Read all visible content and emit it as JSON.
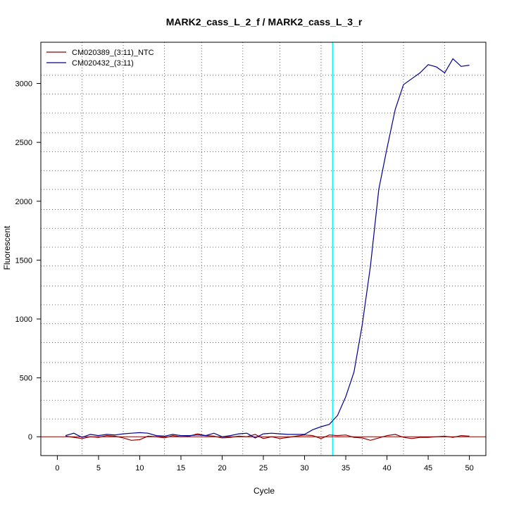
{
  "chart_data": {
    "type": "line",
    "title": "MARK2_cass_L_2_f / MARK2_cass_L_3_r",
    "xlabel": "Cycle",
    "ylabel": "Fluorescent",
    "xlim": [
      -2,
      52
    ],
    "ylim": [
      -160,
      3350
    ],
    "x_ticks": [
      0,
      5,
      10,
      15,
      20,
      25,
      30,
      35,
      40,
      45,
      50
    ],
    "y_ticks": [
      0,
      500,
      1000,
      1500,
      2000,
      2500,
      3000
    ],
    "x_grid": [
      3,
      8,
      13,
      17.5,
      22.5,
      27,
      32,
      37,
      42,
      47,
      52
    ],
    "y_grid": [
      150,
      310,
      470,
      630,
      800,
      960,
      1120,
      1280,
      1450,
      1610,
      1770,
      1930,
      2100,
      2260,
      2420,
      2580,
      2750,
      2910,
      3070
    ],
    "grid": true,
    "legend_position": "top-left",
    "baseline": 0,
    "threshold_cycle": 33.4,
    "colors": {
      "ntc": "#8b0000",
      "sample": "#00008b",
      "threshold": "#00ffff",
      "baseline": "#8b0000",
      "grid": "#666666"
    },
    "series": [
      {
        "name": "CM020389_(3:11)_NTC",
        "color": "#8b0000",
        "x": [
          1,
          2,
          3,
          4,
          5,
          6,
          7,
          8,
          9,
          10,
          11,
          12,
          13,
          14,
          15,
          16,
          17,
          18,
          19,
          20,
          21,
          22,
          23,
          24,
          25,
          26,
          27,
          28,
          29,
          30,
          31,
          32,
          33,
          34,
          35,
          36,
          37,
          38,
          39,
          40,
          41,
          42,
          43,
          44,
          45,
          46,
          47,
          48,
          49,
          50
        ],
        "y": [
          5,
          -5,
          -15,
          0,
          -5,
          10,
          5,
          -10,
          -30,
          -25,
          5,
          0,
          -10,
          10,
          0,
          5,
          25,
          10,
          5,
          -10,
          -5,
          5,
          0,
          20,
          -15,
          0,
          -15,
          -5,
          5,
          15,
          10,
          -15,
          15,
          10,
          15,
          -5,
          -10,
          -30,
          -10,
          10,
          20,
          -5,
          -15,
          -5,
          -5,
          0,
          5,
          -5,
          10,
          5
        ]
      },
      {
        "name": "CM020432_(3:11)",
        "color": "#00008b",
        "x": [
          1,
          2,
          3,
          4,
          5,
          6,
          7,
          8,
          9,
          10,
          11,
          12,
          13,
          14,
          15,
          16,
          17,
          18,
          19,
          20,
          21,
          22,
          23,
          24,
          25,
          26,
          27,
          28,
          29,
          30,
          31,
          32,
          33,
          34,
          35,
          36,
          37,
          38,
          39,
          40,
          41,
          42,
          43,
          44,
          45,
          46,
          47,
          48,
          49,
          50
        ],
        "y": [
          10,
          30,
          -5,
          20,
          10,
          20,
          15,
          25,
          30,
          35,
          30,
          10,
          5,
          20,
          10,
          10,
          15,
          10,
          30,
          0,
          10,
          25,
          30,
          -10,
          25,
          30,
          25,
          20,
          20,
          20,
          60,
          85,
          105,
          180,
          340,
          550,
          950,
          1450,
          2100,
          2450,
          2780,
          2990,
          3040,
          3090,
          3160,
          3140,
          3090,
          3210,
          3145,
          3155
        ]
      }
    ]
  }
}
